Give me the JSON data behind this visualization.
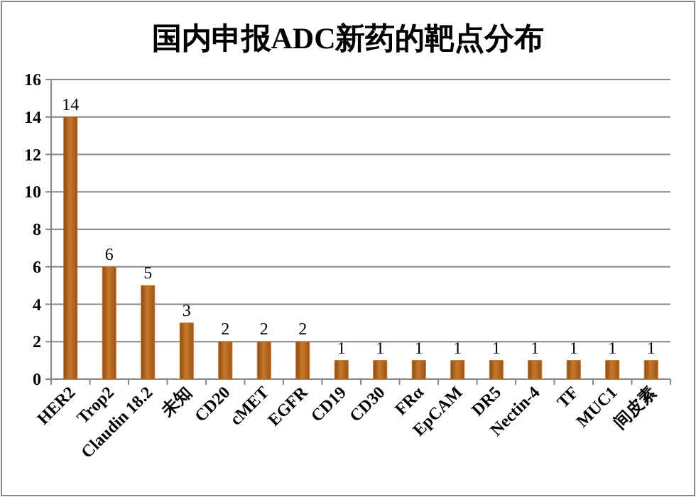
{
  "chart_data": {
    "type": "bar",
    "title": "国内申报ADC新药的靶点分布",
    "categories": [
      "HER2",
      "Trop2",
      "Claudin 18.2",
      "未知",
      "CD20",
      "cMET",
      "EGFR",
      "CD19",
      "CD30",
      "FRα",
      "EpCAM",
      "DR5",
      "Nectin-4",
      "TF",
      "MUC1",
      "间皮素"
    ],
    "values": [
      14,
      6,
      5,
      3,
      2,
      2,
      2,
      1,
      1,
      1,
      1,
      1,
      1,
      1,
      1,
      1
    ],
    "color": "#c8782a",
    "ylim": [
      0,
      16
    ],
    "yticks": [
      0,
      2,
      4,
      6,
      8,
      10,
      12,
      14,
      16
    ],
    "grid": "y",
    "data_labels": true
  }
}
